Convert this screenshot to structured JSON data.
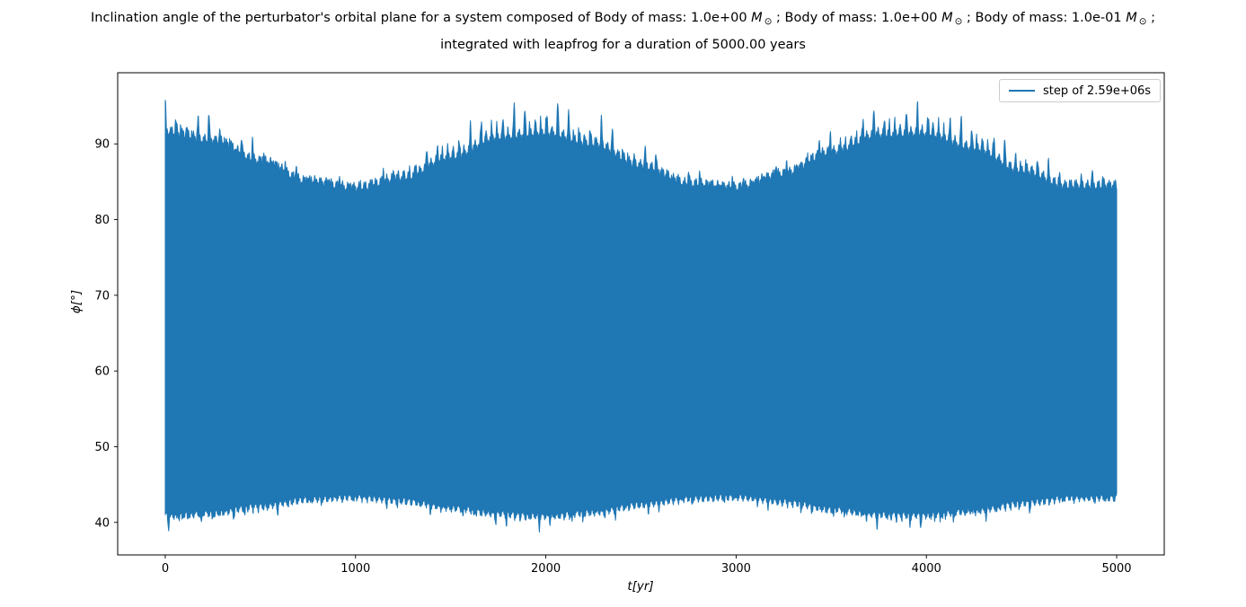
{
  "title": {
    "full_text": "Inclination angle of the perturbator's orbital plane for a system composed of Body of mass: 1.0e+00 M⊙ ; Body of mass: 1.0e+00 M⊙ ; Body of mass: 1.0e-01 M⊙ ; integrated with leapfrog for a duration of 5000.00 years",
    "segments_line1": [
      {
        "t": "Inclination angle of the perturbator's orbital plane for a system composed of Body of mass: 1.0e+00 ",
        "s": "n"
      },
      {
        "t": "M",
        "s": "i"
      },
      {
        "t": "⊙",
        "s": "sub"
      },
      {
        "t": " ; Body of mass: 1.0e+00 ",
        "s": "n"
      },
      {
        "t": "M",
        "s": "i"
      },
      {
        "t": "⊙",
        "s": "sub"
      },
      {
        "t": " ; Body of mass: 1.0e-01 ",
        "s": "n"
      },
      {
        "t": "M",
        "s": "i"
      },
      {
        "t": "⊙",
        "s": "sub"
      },
      {
        "t": " ;",
        "s": "n"
      }
    ],
    "line2": "integrated with leapfrog for a duration of 5000.00 years"
  },
  "chart_data": {
    "type": "line",
    "title": "Inclination angle of the perturbator's orbital plane",
    "xlabel": "t[yr]",
    "ylabel": "ϕ[°]",
    "legend": {
      "label": "step of 2.59e+06s",
      "position": "upper right"
    },
    "color": "#1f77b4",
    "grid": false,
    "xlim": [
      -250,
      5250
    ],
    "ylim": [
      35.7,
      99.4
    ],
    "xticks": [
      0,
      1000,
      2000,
      3000,
      4000,
      5000
    ],
    "xtick_labels": [
      "0",
      "1000",
      "2000",
      "3000",
      "4000",
      "5000"
    ],
    "yticks": [
      40,
      50,
      60,
      70,
      80,
      90
    ],
    "ytick_labels": [
      "40",
      "50",
      "60",
      "70",
      "80",
      "90"
    ],
    "x_range_yr": [
      0,
      5000
    ],
    "y_min_deg": 38.5,
    "y_max_deg": 96.6,
    "modulation_period_yr": 1950,
    "envelope_sample_step_yr": 250,
    "envelope_t": [
      0,
      250,
      500,
      750,
      1000,
      1250,
      1500,
      1750,
      2000,
      2250,
      2500,
      2750,
      3000,
      3250,
      3500,
      3750,
      4000,
      4250,
      4500,
      4750,
      5000
    ],
    "upper_envelope_shoulder": [
      92.5,
      91.3,
      88.6,
      85.9,
      85.0,
      86.4,
      89.2,
      91.8,
      92.4,
      90.9,
      88.0,
      85.6,
      85.1,
      86.9,
      89.8,
      92.1,
      92.3,
      90.4,
      87.4,
      85.3,
      85.3
    ],
    "lower_envelope_shoulder": [
      40.3,
      40.7,
      41.6,
      42.5,
      42.8,
      42.3,
      41.4,
      40.6,
      40.3,
      40.8,
      41.8,
      42.6,
      42.8,
      42.2,
      41.2,
      40.5,
      40.4,
      41.0,
      42.0,
      42.7,
      42.7
    ],
    "upper_spike_amp": {
      "at_modulation_max": 4.0,
      "at_modulation_min": 1.8
    },
    "lower_spike_amp": {
      "at_modulation_max": 1.8,
      "at_modulation_min": 0.8
    },
    "render_hints": {
      "fine_spike_period_yr": 57.3,
      "spike_group_period_upper_yr": 233,
      "spike_group_period_lower_yr": 197,
      "edge_wobble_period_upper_yr": 29,
      "edge_wobble_period_lower_yr": 26,
      "sample_step_yr": 2
    },
    "note": "Signal oscillates rapidly (integration step 2.59e+06 s) between the lower and upper envelopes, appearing as a solid filled band with spiky edges; slow modulation period about 1950 yr with maxima near t = 0, 1950 and 3900 yr."
  }
}
